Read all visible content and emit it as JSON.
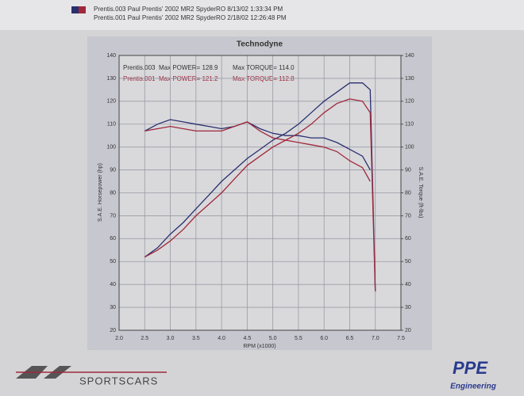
{
  "chart_data": {
    "type": "line",
    "title": "Technodyne",
    "header": [
      "Prentis.003   Paul Prentis' 2002 MR2 SpyderRO   8/13/02 1:33:34 PM",
      "Prentis.001   Paul Prentis' 2002 MR2 SpyderRO   2/18/02 12:26:48 PM"
    ],
    "legend_notes": [
      [
        "Max POWER= 128.9",
        "Max TORQUE= 114.0"
      ],
      [
        "Max POWER= 121.2",
        "Max TORQUE= 112.8"
      ]
    ],
    "xlabel": "RPM (x1000)",
    "ylabel": "S.A.E. Horsepower (hp)",
    "y2label": "S.A.E. Torque (ft-lbs)",
    "x": [
      2.5,
      2.75,
      3.0,
      3.25,
      3.5,
      3.75,
      4.0,
      4.25,
      4.5,
      4.75,
      5.0,
      5.25,
      5.5,
      5.75,
      6.0,
      6.25,
      6.5,
      6.75,
      6.9,
      7.0
    ],
    "series": [
      {
        "name": "Prentis.003",
        "color": "#2a2f6e",
        "values": [
          52,
          56,
          62,
          67,
          73,
          79,
          85,
          90,
          95,
          99,
          103,
          106,
          110,
          115,
          120,
          124,
          128,
          128,
          125,
          37
        ]
      },
      {
        "color": "#2a2f6e",
        "axis": "y2",
        "values": [
          107,
          110,
          112,
          111,
          110,
          109,
          108,
          109,
          111,
          108,
          106,
          105,
          105,
          104,
          104,
          102,
          99,
          96,
          90,
          null
        ]
      },
      {
        "name": "Prentis.001",
        "color": "#a0283a",
        "values": [
          52,
          55,
          59,
          64,
          70,
          75,
          80,
          86,
          92,
          96,
          100,
          103,
          106,
          110,
          115,
          119,
          121,
          120,
          115,
          37
        ]
      },
      {
        "color": "#a0283a",
        "axis": "y2",
        "values": [
          107,
          108,
          109,
          108,
          107,
          107,
          107,
          109,
          111,
          107,
          104,
          103,
          102,
          101,
          100,
          98,
          94,
          91,
          85,
          null
        ]
      }
    ],
    "xlim": [
      2.0,
      7.5
    ],
    "xticks": [
      {
        "value": 2,
        "label": "2.0"
      },
      {
        "value": 2.5,
        "label": "2.5"
      },
      {
        "value": 3,
        "label": "3.0"
      },
      {
        "value": 3.5,
        "label": "3.5"
      },
      {
        "value": 4,
        "label": "4.0"
      },
      {
        "value": 4.5,
        "label": "4.5"
      },
      {
        "value": 5,
        "label": "5.0"
      },
      {
        "value": 5.5,
        "label": "5.5"
      },
      {
        "value": 6,
        "label": "6.0"
      },
      {
        "value": 6.5,
        "label": "6.5"
      },
      {
        "value": 7,
        "label": "7.0"
      },
      {
        "value": 7.5,
        "label": "7.5"
      }
    ],
    "ylim": [
      20,
      140
    ],
    "yticks": [
      20,
      30,
      40,
      50,
      60,
      70,
      80,
      90,
      100,
      110,
      120,
      130,
      140
    ],
    "y2lim": [
      20,
      140
    ],
    "y2ticks": [
      20,
      30,
      40,
      50,
      60,
      70,
      80,
      90,
      100,
      110,
      120,
      130,
      140
    ],
    "grid": true
  },
  "footer": {
    "brand": "SPORTSCARS",
    "logo": "PPE",
    "logo_sub": "Engineering"
  }
}
